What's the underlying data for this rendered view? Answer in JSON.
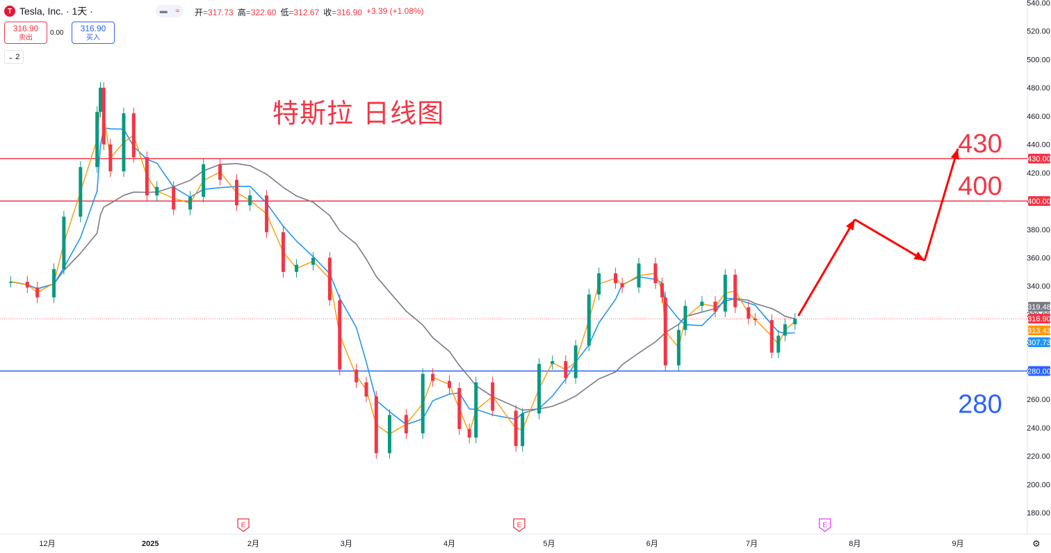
{
  "header": {
    "symbol": "Tesla, Inc. · 1天 ·",
    "logo": "T",
    "toggle_a": "▬",
    "toggle_b": "≈",
    "ohlc": [
      {
        "k": "开",
        "v": "=317.73"
      },
      {
        "k": "高",
        "v": "=322.60"
      },
      {
        "k": "低",
        "v": "=312.67"
      },
      {
        "k": "收",
        "v": "=316.90"
      },
      {
        "k": "",
        "v": "+3.39 (+1.08%)"
      }
    ]
  },
  "trade": {
    "sell_price": "316.90",
    "sell_label": "卖出",
    "spread": "0.00",
    "buy_price": "316.90",
    "buy_label": "买入"
  },
  "indicator_count": "2",
  "chart_data": {
    "type": "candlestick",
    "title": "特斯拉 日线图",
    "ylim": [
      180,
      540
    ],
    "yticks": [
      180,
      200,
      220,
      240,
      260,
      280,
      300,
      320,
      340,
      360,
      380,
      400,
      420,
      440,
      460,
      480,
      500,
      520,
      540
    ],
    "xticks": [
      {
        "label": "12月",
        "date": "2024-12-01"
      },
      {
        "label": "2025",
        "date": "2025-01-01"
      },
      {
        "label": "2月",
        "date": "2025-02-01"
      },
      {
        "label": "3月",
        "date": "2025-03-01"
      },
      {
        "label": "4月",
        "date": "2025-04-01"
      },
      {
        "label": "5月",
        "date": "2025-05-01"
      },
      {
        "label": "6月",
        "date": "2025-06-01"
      },
      {
        "label": "7月",
        "date": "2025-07-01"
      },
      {
        "label": "8月",
        "date": "2025-08-01"
      },
      {
        "label": "9月",
        "date": "2025-09-01"
      }
    ],
    "earnings_markers": [
      {
        "date": "2025-01-29",
        "label": "E",
        "color": "#f23645"
      },
      {
        "date": "2025-04-22",
        "label": "E",
        "color": "#f23645"
      },
      {
        "date": "2025-07-23",
        "label": "E",
        "color": "#e040fb"
      }
    ],
    "candles_close": [
      {
        "date": "2024-11-20",
        "close": 343
      },
      {
        "date": "2024-11-25",
        "close": 339
      },
      {
        "date": "2024-11-28",
        "close": 332
      },
      {
        "date": "2024-12-03",
        "close": 352
      },
      {
        "date": "2024-12-06",
        "close": 389
      },
      {
        "date": "2024-12-11",
        "close": 424
      },
      {
        "date": "2024-12-16",
        "close": 463
      },
      {
        "date": "2024-12-17",
        "close": 480
      },
      {
        "date": "2024-12-18",
        "close": 440
      },
      {
        "date": "2024-12-20",
        "close": 421
      },
      {
        "date": "2024-12-24",
        "close": 462
      },
      {
        "date": "2024-12-27",
        "close": 431
      },
      {
        "date": "2024-12-31",
        "close": 404
      },
      {
        "date": "2025-01-03",
        "close": 410
      },
      {
        "date": "2025-01-08",
        "close": 394
      },
      {
        "date": "2025-01-13",
        "close": 403
      },
      {
        "date": "2025-01-17",
        "close": 426
      },
      {
        "date": "2025-01-22",
        "close": 415
      },
      {
        "date": "2025-01-27",
        "close": 397
      },
      {
        "date": "2025-01-31",
        "close": 404
      },
      {
        "date": "2025-02-05",
        "close": 378
      },
      {
        "date": "2025-02-10",
        "close": 350
      },
      {
        "date": "2025-02-14",
        "close": 355
      },
      {
        "date": "2025-02-19",
        "close": 360
      },
      {
        "date": "2025-02-24",
        "close": 330
      },
      {
        "date": "2025-02-27",
        "close": 281
      },
      {
        "date": "2025-03-04",
        "close": 272
      },
      {
        "date": "2025-03-07",
        "close": 262
      },
      {
        "date": "2025-03-10",
        "close": 222
      },
      {
        "date": "2025-03-14",
        "close": 249
      },
      {
        "date": "2025-03-19",
        "close": 236
      },
      {
        "date": "2025-03-24",
        "close": 278
      },
      {
        "date": "2025-03-27",
        "close": 273
      },
      {
        "date": "2025-04-01",
        "close": 268
      },
      {
        "date": "2025-04-04",
        "close": 239
      },
      {
        "date": "2025-04-07",
        "close": 233
      },
      {
        "date": "2025-04-09",
        "close": 272
      },
      {
        "date": "2025-04-14",
        "close": 252
      },
      {
        "date": "2025-04-21",
        "close": 227
      },
      {
        "date": "2025-04-23",
        "close": 250
      },
      {
        "date": "2025-04-28",
        "close": 285
      },
      {
        "date": "2025-05-02",
        "close": 287
      },
      {
        "date": "2025-05-06",
        "close": 275
      },
      {
        "date": "2025-05-09",
        "close": 298
      },
      {
        "date": "2025-05-13",
        "close": 334
      },
      {
        "date": "2025-05-16",
        "close": 349
      },
      {
        "date": "2025-05-21",
        "close": 342
      },
      {
        "date": "2025-05-23",
        "close": 339
      },
      {
        "date": "2025-05-28",
        "close": 356
      },
      {
        "date": "2025-06-02",
        "close": 342
      },
      {
        "date": "2025-06-04",
        "close": 332
      },
      {
        "date": "2025-06-05",
        "close": 284
      },
      {
        "date": "2025-06-09",
        "close": 309
      },
      {
        "date": "2025-06-11",
        "close": 326
      },
      {
        "date": "2025-06-16",
        "close": 329
      },
      {
        "date": "2025-06-20",
        "close": 322
      },
      {
        "date": "2025-06-23",
        "close": 348
      },
      {
        "date": "2025-06-26",
        "close": 325
      },
      {
        "date": "2025-06-30",
        "close": 317
      },
      {
        "date": "2025-07-02",
        "close": 316
      },
      {
        "date": "2025-07-07",
        "close": 293
      },
      {
        "date": "2025-07-09",
        "close": 305
      },
      {
        "date": "2025-07-11",
        "close": 313
      },
      {
        "date": "2025-07-14",
        "close": 316.9
      }
    ],
    "levels": [
      {
        "value": 430,
        "label": "430.00",
        "color": "#f23645"
      },
      {
        "value": 400,
        "label": "400.00",
        "color": "#f23645"
      },
      {
        "value": 280,
        "label": "280.00",
        "color": "#2962ff"
      }
    ],
    "price_tags": [
      {
        "value": 319.48,
        "label": "319.48",
        "color": "#787b86"
      },
      {
        "value": 316.9,
        "label": "316.90",
        "color": "#f23645"
      },
      {
        "value": 313.43,
        "label": "313.43",
        "color": "#ff9800"
      },
      {
        "value": 307.73,
        "label": "307.73",
        "color": "#2196f3"
      }
    ],
    "current_price": 316.9,
    "annotations": [
      {
        "text": "430",
        "value": 430,
        "color": "#f23645"
      },
      {
        "text": "400",
        "value": 400,
        "color": "#f23645"
      },
      {
        "text": "280",
        "value": 280,
        "color": "#2962ff"
      }
    ],
    "projection_path": [
      {
        "date": "2025-07-15",
        "price": 319
      },
      {
        "date": "2025-08-01",
        "price": 387
      },
      {
        "date": "2025-08-22",
        "price": 358
      },
      {
        "date": "2025-09-01",
        "price": 437
      }
    ],
    "colors": {
      "up": "#089981",
      "down": "#f23645",
      "ma_fast": "#ff9800",
      "ma_mid": "#2196f3",
      "ma_slow": "#787b86"
    }
  }
}
